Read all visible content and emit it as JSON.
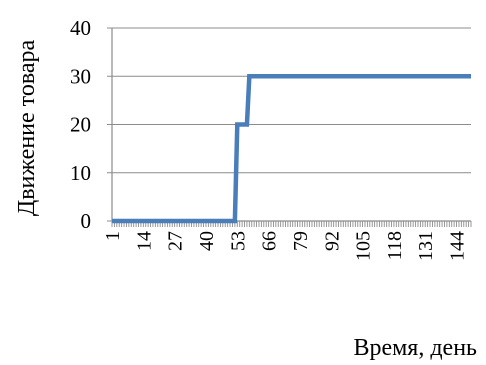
{
  "chart_data": {
    "type": "line",
    "xlabel": "Время, день",
    "ylabel": "Движение товара",
    "ylim": [
      0,
      40
    ],
    "yticks": [
      0,
      10,
      20,
      30,
      40
    ],
    "xlim": [
      1,
      150
    ],
    "xtick_labels": [
      "1",
      "14",
      "27",
      "40",
      "53",
      "66",
      "79",
      "92",
      "105",
      "118",
      "131",
      "144"
    ],
    "grid": "horizontal",
    "series": [
      {
        "color": "#4a7ebb",
        "x": [
          1,
          52,
          53,
          57,
          58,
          150
        ],
        "y": [
          0,
          0,
          20,
          20,
          30,
          30
        ]
      }
    ]
  }
}
